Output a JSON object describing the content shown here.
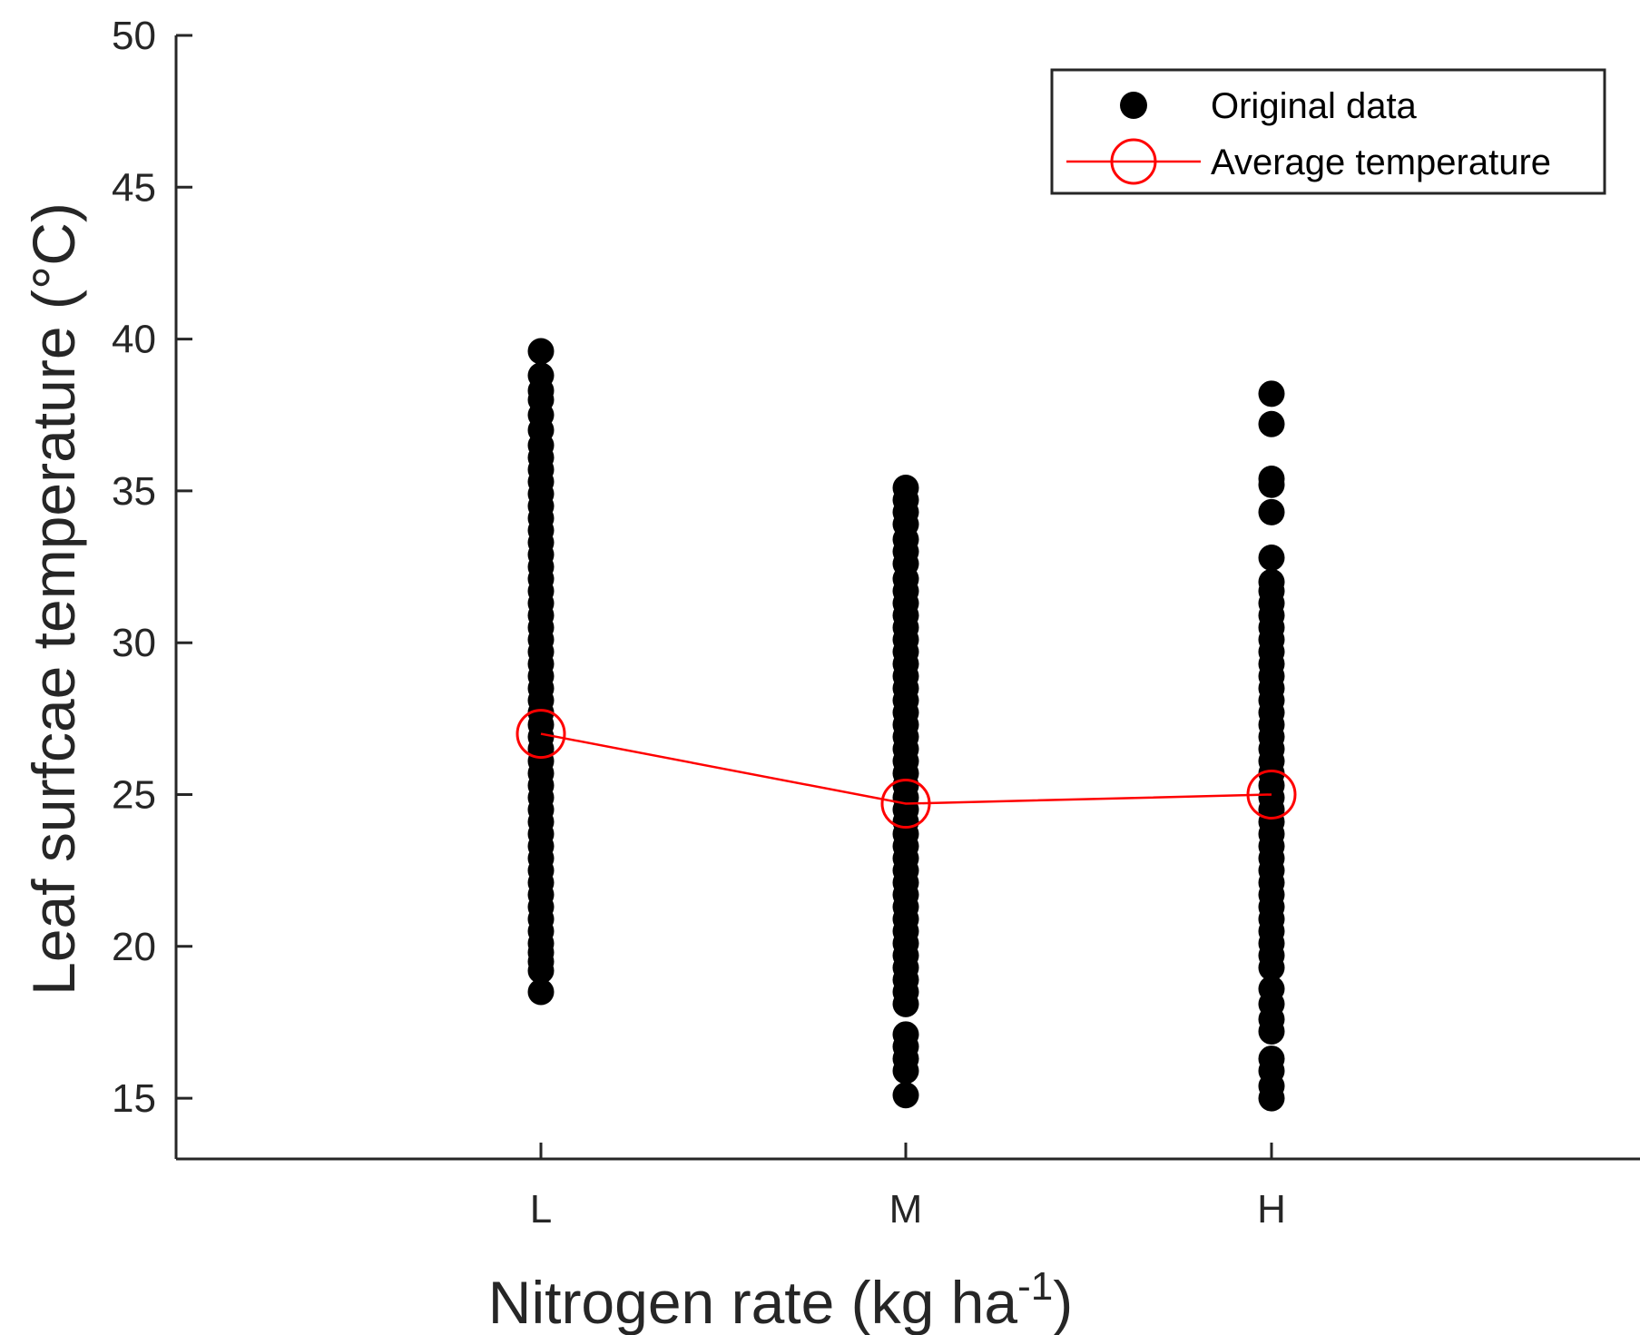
{
  "chart_data": {
    "type": "scatter",
    "title": "",
    "xlabel": "Nitrogen rate (kg ha",
    "xlabel_superscript": "-1",
    "xlabel_suffix": ")",
    "ylabel": "Leaf surfcae temperature (°C)",
    "categories": [
      "L",
      "M",
      "H"
    ],
    "y_ticks": [
      "15",
      "20",
      "25",
      "30",
      "35",
      "40",
      "45",
      "50"
    ],
    "ylim": [
      13,
      50
    ],
    "grid": false,
    "legend_position": "top-right",
    "series": [
      {
        "name": "Original data",
        "marker": "filled-circle",
        "color": "#000000",
        "points": {
          "L": [
            18.5,
            19.2,
            19.5,
            19.8,
            20.1,
            20.5,
            20.9,
            21.3,
            21.7,
            22.1,
            22.5,
            22.9,
            23.3,
            23.7,
            24.1,
            24.5,
            24.9,
            25.3,
            25.7,
            26.1,
            26.5,
            26.9,
            27.3,
            27.7,
            28.1,
            28.5,
            28.9,
            29.3,
            29.7,
            30.1,
            30.5,
            30.9,
            31.3,
            31.7,
            32.1,
            32.5,
            32.9,
            33.3,
            33.7,
            34.1,
            34.5,
            34.9,
            35.3,
            35.7,
            36.1,
            36.5,
            37.0,
            37.5,
            38.0,
            38.3,
            38.8,
            39.6
          ],
          "M": [
            15.1,
            15.9,
            16.3,
            16.7,
            17.1,
            18.1,
            18.5,
            18.9,
            19.3,
            19.7,
            20.1,
            20.5,
            20.9,
            21.3,
            21.7,
            22.1,
            22.5,
            22.9,
            23.3,
            23.7,
            24.1,
            24.5,
            24.9,
            25.3,
            25.7,
            26.1,
            26.5,
            26.9,
            27.3,
            27.7,
            28.1,
            28.5,
            28.9,
            29.3,
            29.7,
            30.1,
            30.5,
            30.9,
            31.3,
            31.7,
            32.1,
            32.6,
            33.0,
            33.4,
            33.9,
            34.3,
            34.7,
            35.1
          ],
          "H": [
            15.0,
            15.4,
            15.9,
            16.3,
            17.2,
            17.6,
            18.1,
            18.6,
            19.3,
            19.7,
            20.1,
            20.5,
            20.9,
            21.3,
            21.7,
            22.1,
            22.5,
            22.9,
            23.3,
            23.7,
            24.1,
            24.5,
            24.9,
            25.3,
            25.7,
            26.1,
            26.5,
            26.9,
            27.3,
            27.7,
            28.1,
            28.5,
            28.9,
            29.3,
            29.7,
            30.1,
            30.5,
            30.9,
            31.3,
            31.7,
            32.0,
            32.8,
            34.3,
            35.2,
            35.4,
            37.2,
            38.2
          ]
        }
      },
      {
        "name": "Average temperature",
        "marker": "open-circle",
        "color": "#ff0000",
        "values": [
          27.0,
          24.7,
          25.0
        ]
      }
    ]
  }
}
